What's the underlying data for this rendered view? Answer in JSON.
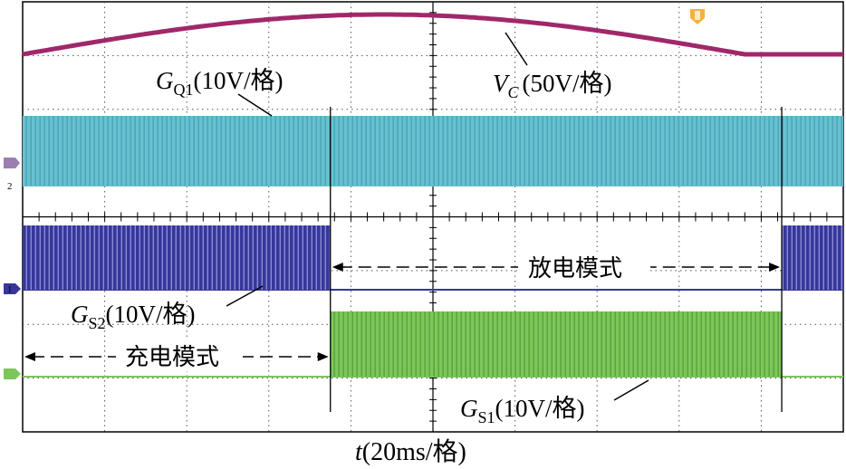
{
  "chart_data": {
    "type": "line",
    "subtype": "oscilloscope-capture",
    "xlabel_italic": "t",
    "xlabel_rest": "(20ms/格)",
    "grid": "dotted 10x8 divisions",
    "switch_times_div": [
      3.75,
      9.25
    ],
    "series": [
      {
        "name": "V_C",
        "label_var": "V",
        "label_sub": "C",
        "label_scale": "(50V/格)",
        "color": "#a0286a",
        "shape": "half-sine",
        "peak_div": 4.0
      },
      {
        "name": "G_Q1",
        "label_var": "G",
        "label_sub": "Q1",
        "label_scale": "(10V/格)",
        "color": "#69c0cf",
        "active_intervals_div": [
          [
            0,
            10
          ]
        ]
      },
      {
        "name": "G_S2",
        "label_var": "G",
        "label_sub": "S2",
        "label_scale": "(10V/格)",
        "color": "#37379a",
        "active_intervals_div": [
          [
            0,
            3.75
          ],
          [
            9.25,
            10
          ]
        ]
      },
      {
        "name": "G_S1",
        "label_var": "G",
        "label_sub": "S1",
        "label_scale": "(10V/格)",
        "color": "#7cc65b",
        "active_intervals_div": [
          [
            3.75,
            9.25
          ]
        ]
      }
    ],
    "annotations": [
      {
        "text": "充电模式",
        "from_div": 0.0,
        "to_div": 3.75
      },
      {
        "text": "放电模式",
        "from_div": 3.75,
        "to_div": 9.25
      }
    ],
    "channel_markers": [
      "2",
      "1"
    ]
  }
}
